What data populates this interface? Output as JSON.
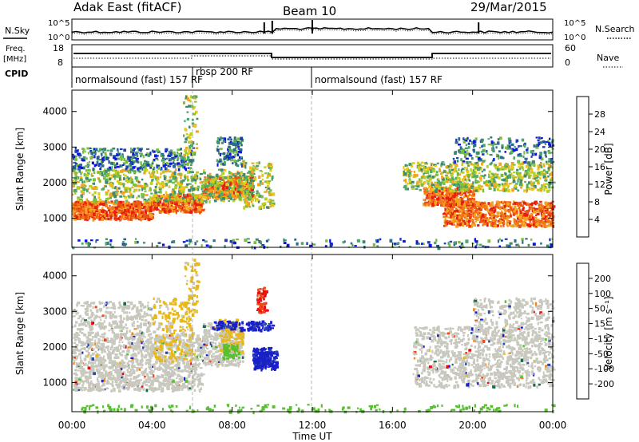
{
  "header": {
    "station": "Adak East (fitACF)",
    "beam": "Beam 10",
    "date": "29/Mar/2015"
  },
  "panels": {
    "nsky_label": "N.Sky",
    "nsearch_label": "N.Search",
    "noise_ticks_left": [
      "10^5",
      "10^0"
    ],
    "noise_ticks_right": [
      "10^5",
      "10^0"
    ],
    "freq_label": "Freq.",
    "freq_unit": "[MHz]",
    "freq_ticks": [
      "18",
      "8"
    ],
    "nave_label": "Nave",
    "nave_ticks": [
      "60",
      "0"
    ],
    "cpid_label": "CPID",
    "cpid_segments": [
      "normalsound (fast) 157 RF",
      "rbsp 200 RF",
      "normalsound (fast) 157 RF"
    ]
  },
  "chart_data": [
    {
      "type": "heatmap",
      "title": "",
      "ylabel": "Slant Range [km]",
      "xlabel": "Time UT",
      "x_ticks": [
        "00:00",
        "04:00",
        "08:00",
        "12:00",
        "16:00",
        "20:00",
        "00:00"
      ],
      "y_ticks": [
        "1000",
        "2000",
        "3000",
        "4000"
      ],
      "ylim": [
        180,
        4600
      ],
      "xlim_hours": [
        0,
        24
      ],
      "colorbar": {
        "label": "Power [dB]",
        "ticks": [
          "28",
          "24",
          "20",
          "16",
          "12",
          "8",
          "4"
        ],
        "colors": [
          "#0a14e6",
          "#1e3fb0",
          "#2f6a8a",
          "#3f8a6e",
          "#4fa86a",
          "#7cbf3c",
          "#b8cf26",
          "#e8c81a",
          "#f4a320",
          "#f07818",
          "#ec5014",
          "#e61e10"
        ]
      },
      "features": [
        {
          "hours": [
            0,
            6
          ],
          "range_km": [
            900,
            1500
          ],
          "level": "high"
        },
        {
          "hours": [
            6,
            9
          ],
          "range_km": [
            1300,
            2200
          ],
          "level": "high"
        },
        {
          "hours": [
            0,
            9
          ],
          "range_km": [
            1500,
            3000
          ],
          "level": "medium"
        },
        {
          "hours": [
            18,
            24
          ],
          "range_km": [
            800,
            1800
          ],
          "level": "high"
        },
        {
          "hours": [
            16.5,
            24
          ],
          "range_km": [
            1800,
            3300
          ],
          "level": "medium"
        }
      ]
    },
    {
      "type": "heatmap",
      "title": "",
      "ylabel": "Slant Range [km]",
      "xlabel": "Time UT",
      "x_ticks": [
        "00:00",
        "04:00",
        "08:00",
        "12:00",
        "16:00",
        "20:00",
        "00:00"
      ],
      "y_ticks": [
        "1000",
        "2000",
        "3000",
        "4000"
      ],
      "ylim": [
        180,
        4600
      ],
      "xlim_hours": [
        0,
        24
      ],
      "colorbar": {
        "label": "Velocity [m s⁻¹]",
        "ticks": [
          "200",
          "100",
          "50",
          "15",
          "-15",
          "-50",
          "-100",
          "-200"
        ],
        "colors": [
          "#1a20c8",
          "#2a48b0",
          "#1d6a4a",
          "#58c030",
          "#c8c8be",
          "#e8b818",
          "#f08418",
          "#ec4818",
          "#e61010"
        ]
      },
      "features": [
        {
          "hours": [
            0,
            9
          ],
          "range_km": [
            800,
            2800
          ],
          "velocity": "near zero (grey)"
        },
        {
          "hours": [
            4,
            6
          ],
          "range_km": [
            1500,
            3300
          ],
          "velocity": "-15 to -50 (orange)"
        },
        {
          "hours": [
            8.5,
            10
          ],
          "range_km": [
            1300,
            2000
          ],
          "velocity": "+200 (blue)"
        },
        {
          "hours": [
            16.5,
            24
          ],
          "range_km": [
            900,
            2600
          ],
          "velocity": "near zero (grey)"
        }
      ]
    }
  ]
}
